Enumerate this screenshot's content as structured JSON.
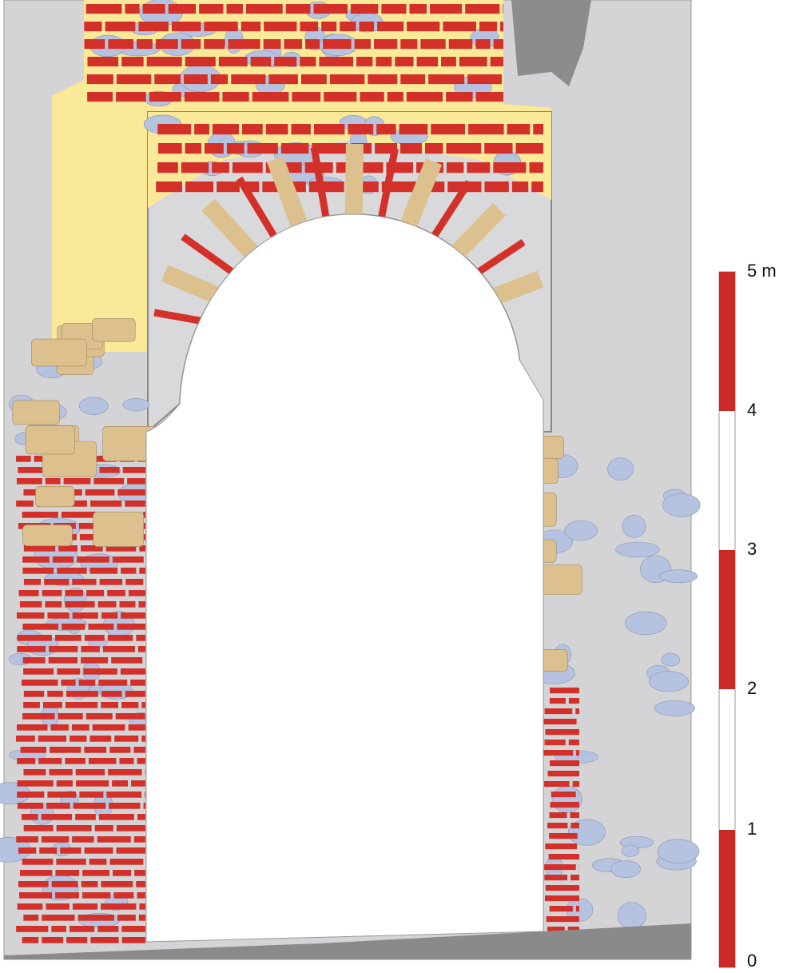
{
  "scale": {
    "labels": [
      "0",
      "1",
      "2",
      "3",
      "4",
      "5 m"
    ]
  }
}
